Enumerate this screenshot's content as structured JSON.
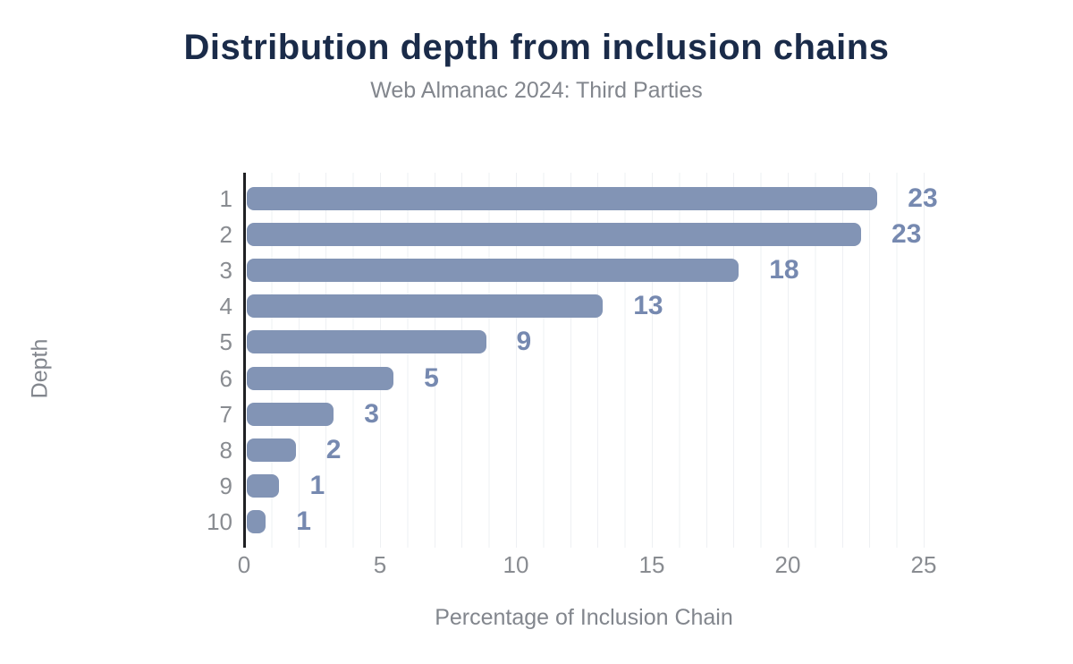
{
  "header": {
    "title": "Distribution depth from inclusion chains",
    "subtitle": "Web Almanac 2024: Third Parties"
  },
  "chart_data": {
    "type": "bar",
    "orientation": "horizontal",
    "title": "Distribution depth from inclusion chains",
    "subtitle": "Web Almanac 2024: Third Parties",
    "categories": [
      "1",
      "2",
      "3",
      "4",
      "5",
      "6",
      "7",
      "8",
      "9",
      "10"
    ],
    "values": [
      23.2,
      22.6,
      18.1,
      13.1,
      8.8,
      5.4,
      3.2,
      1.8,
      1.2,
      0.7
    ],
    "value_labels": [
      "23",
      "23",
      "18",
      "13",
      "9",
      "5",
      "3",
      "2",
      "1",
      "1"
    ],
    "xlabel": "Percentage of Inclusion Chain",
    "ylabel": "Depth",
    "xlim": [
      0,
      25
    ],
    "x_ticks": [
      0,
      5,
      10,
      15,
      20,
      25
    ],
    "grid": "vertical gridlines every 1 unit",
    "legend": "none",
    "colors": {
      "bar": "#8294b5",
      "value_label": "#7689b0",
      "title": "#1a2b49",
      "subtitle": "#82868d",
      "tick_label": "#898c91",
      "axis_line": "#1f2023",
      "gridline": "#eef0f3",
      "background": "#ffffff"
    }
  }
}
